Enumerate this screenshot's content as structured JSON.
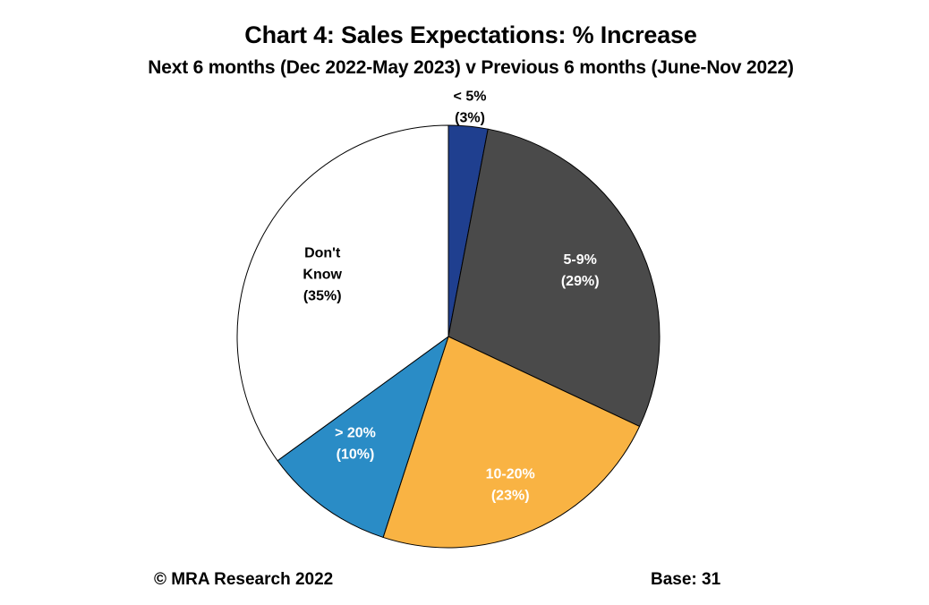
{
  "chart_data": {
    "type": "pie",
    "title": "Chart 4: Sales Expectations: % Increase",
    "subtitle": "Next 6 months (Dec 2022-May 2023) v Previous 6 months (June-Nov 2022)",
    "slices": [
      {
        "label_lines": [
          "< 5%",
          "(3%)"
        ],
        "value": 3,
        "color": "#1f3f8f",
        "label_color": "#000000"
      },
      {
        "label_lines": [
          "5-9%",
          "(29%)"
        ],
        "value": 29,
        "color": "#4a4a4a",
        "label_color": "#ffffff"
      },
      {
        "label_lines": [
          "10-20%",
          "(23%)"
        ],
        "value": 23,
        "color": "#f9b343",
        "label_color": "#ffffff"
      },
      {
        "label_lines": [
          "> 20%",
          "(10%)"
        ],
        "value": 10,
        "color": "#2a8cc6",
        "label_color": "#ffffff"
      },
      {
        "label_lines": [
          "Don't",
          "Know",
          "(35%)"
        ],
        "value": 35,
        "color": "#ffffff",
        "label_color": "#000000"
      }
    ]
  },
  "footer": {
    "copyright": "© MRA Research 2022",
    "base": "Base: 31"
  }
}
